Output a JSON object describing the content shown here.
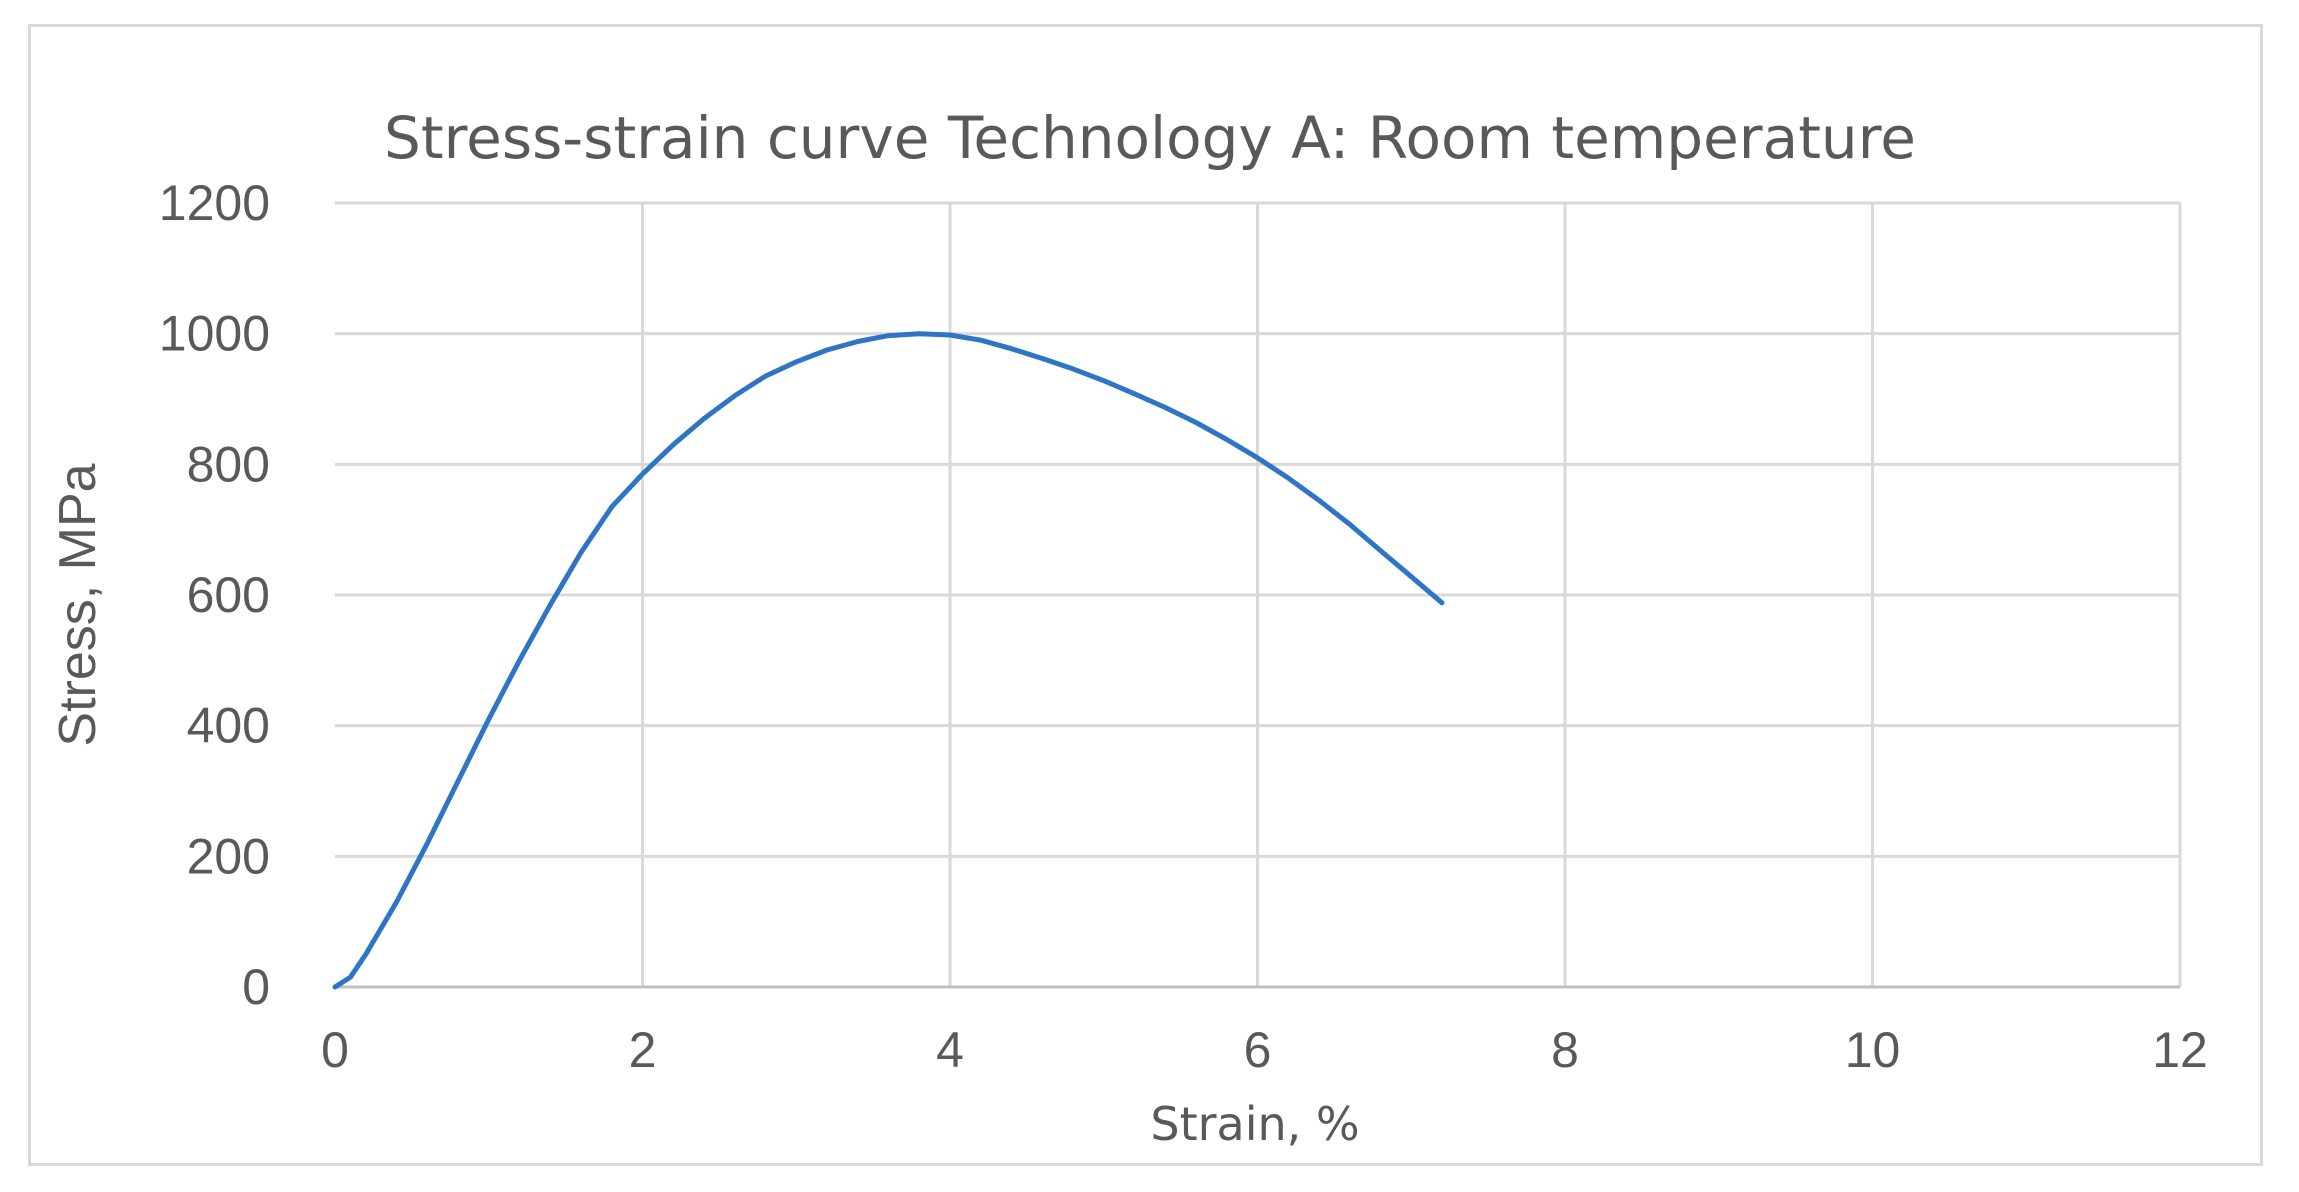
{
  "chart_data": {
    "type": "line",
    "title": "Stress-strain curve Technology A: Room temperature",
    "xlabel": "Strain, %",
    "ylabel": "Stress, MPa",
    "xlim": [
      0,
      12
    ],
    "ylim": [
      0,
      1200
    ],
    "xticks": [
      "0",
      "2",
      "4",
      "6",
      "8",
      "10",
      "12"
    ],
    "yticks": [
      "0",
      "200",
      "400",
      "600",
      "800",
      "1000",
      "1200"
    ],
    "grid": true,
    "legend": "none",
    "series": [
      {
        "color": "#2e75c5",
        "x": [
          0,
          0.1,
          0.2,
          0.4,
          0.6,
          0.8,
          1.0,
          1.2,
          1.4,
          1.6,
          1.8,
          2.0,
          2.2,
          2.4,
          2.6,
          2.8,
          3.0,
          3.2,
          3.4,
          3.6,
          3.8,
          4.0,
          4.2,
          4.4,
          4.6,
          4.8,
          5.0,
          5.2,
          5.4,
          5.6,
          5.8,
          6.0,
          6.2,
          6.4,
          6.6,
          6.8,
          7.0,
          7.2
        ],
        "y": [
          0,
          15,
          50,
          130,
          220,
          315,
          410,
          500,
          585,
          665,
          735,
          785,
          830,
          870,
          905,
          935,
          957,
          975,
          988,
          997,
          1000,
          998,
          990,
          977,
          962,
          946,
          928,
          908,
          887,
          864,
          838,
          810,
          779,
          745,
          708,
          668,
          628,
          588
        ]
      }
    ]
  }
}
